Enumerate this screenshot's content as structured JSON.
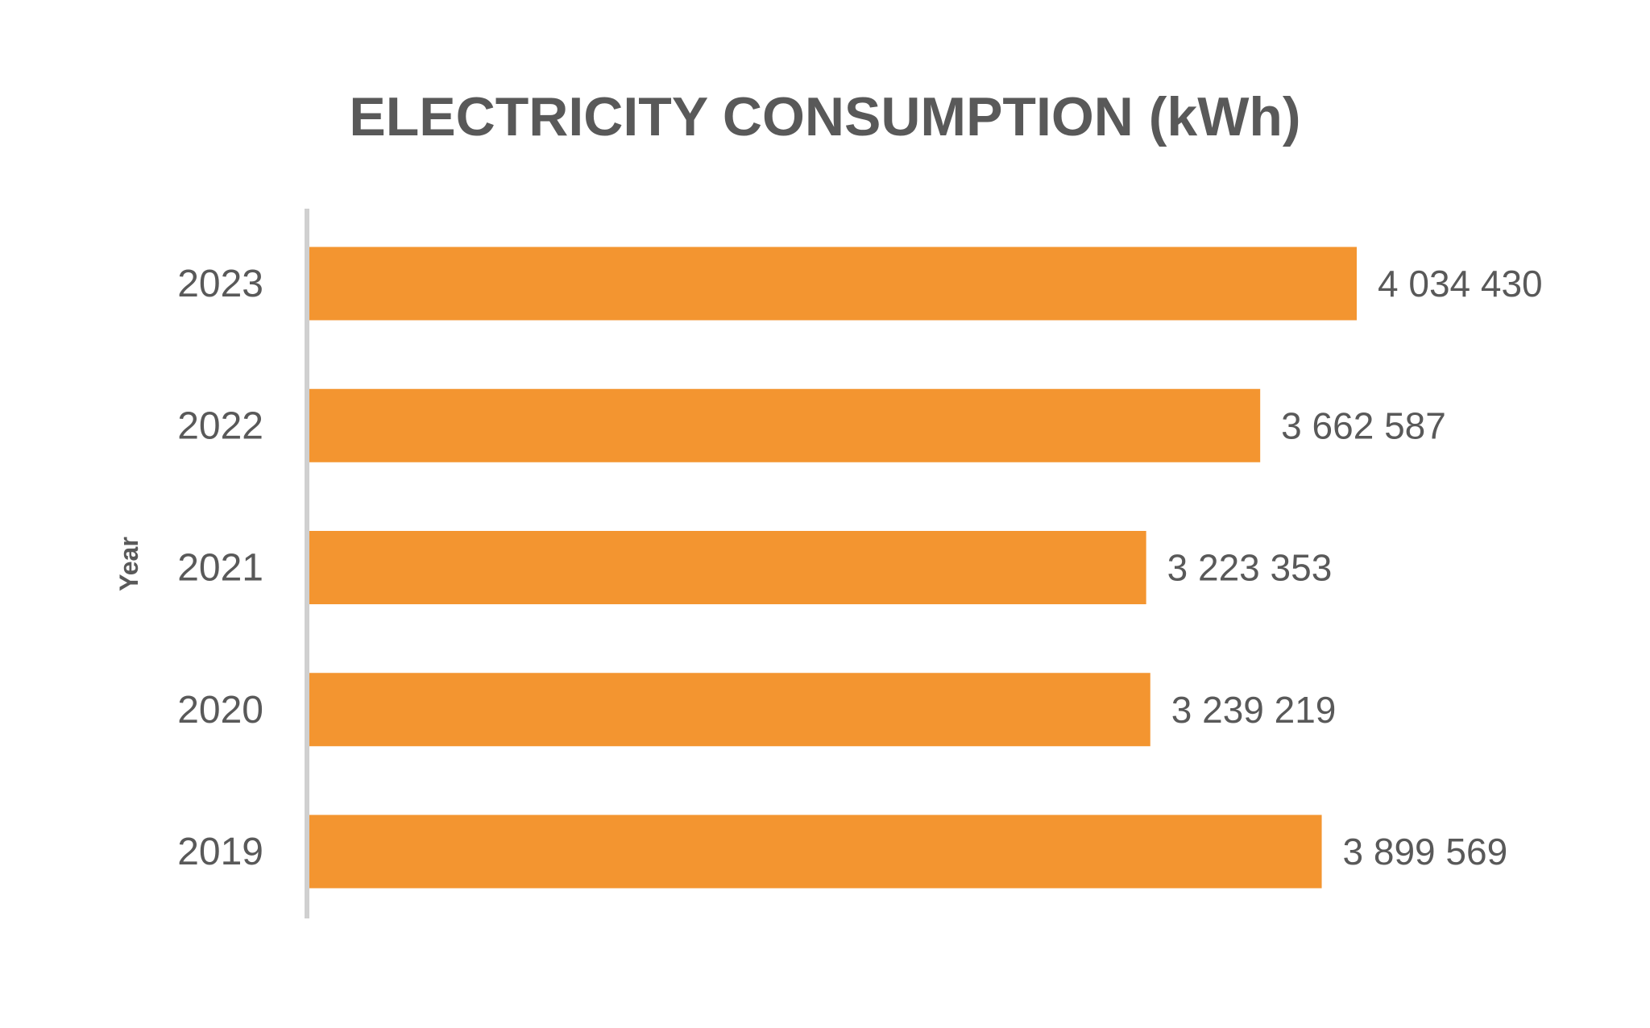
{
  "colors": {
    "bar": "#F39530",
    "text": "#595959",
    "axis_line": "#D0D0D0",
    "background": "#FFFFFF"
  },
  "chart_data": {
    "type": "bar",
    "orientation": "horizontal",
    "title": "ELECTRICITY CONSUMPTION (kWh)",
    "ylabel": "Year",
    "xlabel": "",
    "categories": [
      "2023",
      "2022",
      "2021",
      "2020",
      "2019"
    ],
    "values": [
      4034430,
      3662587,
      3223353,
      3239219,
      3899569
    ],
    "data_labels": [
      "4 034 430",
      "3 662 587",
      "3 223 353",
      "3 239 219",
      "3 899 569"
    ],
    "xlim": [
      0,
      4034430
    ],
    "grid": false,
    "legend": "none"
  }
}
